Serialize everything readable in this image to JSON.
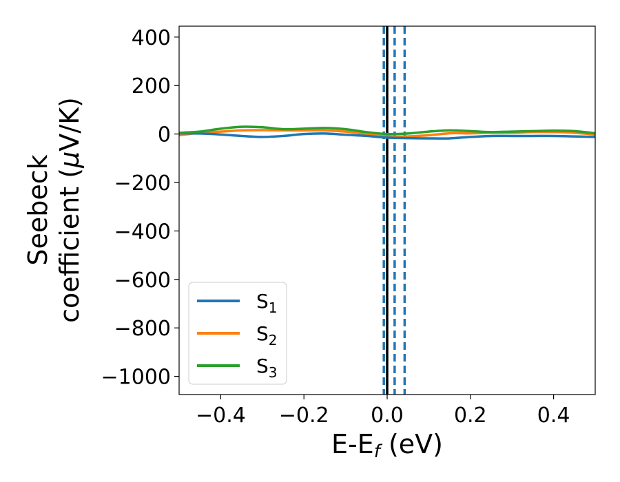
{
  "chart_data": {
    "type": "line",
    "xlabel": "E-E",
    "xlabel_sub": "f",
    "xlabel_unit": " (eV)",
    "ylabel_line1": "Seebeck",
    "ylabel_line2": "coefficient  (",
    "ylabel_mu": "μ",
    "ylabel_line2_end": "V/K)",
    "xlim": [
      -0.5,
      0.5
    ],
    "ylim": [
      -1075,
      445
    ],
    "x_ticks": [
      -0.4,
      -0.2,
      0.0,
      0.2,
      0.4
    ],
    "x_tick_labels": [
      "−0.4",
      "−0.2",
      "0.0",
      "0.2",
      "0.4"
    ],
    "y_ticks": [
      400,
      200,
      0,
      -200,
      -400,
      -600,
      -800,
      -1000
    ],
    "y_tick_labels": [
      "400",
      "200",
      "0",
      "−200",
      "−400",
      "−600",
      "−800",
      "−1000"
    ],
    "legend_position": "lower-left",
    "series": [
      {
        "name": "S",
        "name_sub": "1",
        "color": "#1f77b4",
        "x": [
          -0.5,
          -0.45,
          -0.4,
          -0.35,
          -0.3,
          -0.25,
          -0.2,
          -0.15,
          -0.1,
          -0.05,
          0.0,
          0.05,
          0.1,
          0.15,
          0.2,
          0.25,
          0.3,
          0.35,
          0.4,
          0.45,
          0.5
        ],
        "y": [
          3,
          2,
          -2,
          -8,
          -12,
          -8,
          0,
          2,
          -3,
          -8,
          -15,
          -17,
          -18,
          -18,
          -12,
          -8,
          -8,
          -8,
          -8,
          -10,
          -12
        ]
      },
      {
        "name": "S",
        "name_sub": "2",
        "color": "#ff7f0e",
        "x": [
          -0.5,
          -0.45,
          -0.4,
          -0.35,
          -0.3,
          -0.25,
          -0.2,
          -0.15,
          -0.1,
          -0.05,
          0.0,
          0.05,
          0.1,
          0.15,
          0.2,
          0.25,
          0.3,
          0.35,
          0.4,
          0.45,
          0.5
        ],
        "y": [
          -5,
          5,
          10,
          15,
          16,
          15,
          15,
          15,
          10,
          0,
          -10,
          -10,
          -5,
          3,
          3,
          5,
          5,
          8,
          8,
          5,
          -2
        ]
      },
      {
        "name": "S",
        "name_sub": "3",
        "color": "#2ca02c",
        "x": [
          -0.5,
          -0.45,
          -0.4,
          -0.35,
          -0.3,
          -0.25,
          -0.2,
          -0.15,
          -0.1,
          -0.05,
          0.0,
          0.05,
          0.1,
          0.15,
          0.2,
          0.25,
          0.3,
          0.35,
          0.4,
          0.45,
          0.5
        ],
        "y": [
          5,
          10,
          22,
          30,
          28,
          20,
          22,
          25,
          20,
          8,
          0,
          2,
          10,
          15,
          12,
          8,
          10,
          12,
          14,
          12,
          3
        ]
      }
    ],
    "vlines": [
      {
        "x": -0.008,
        "style": "dashed",
        "color": "#1f77b4"
      },
      {
        "x": 0.0,
        "style": "solid",
        "color": "#000000"
      },
      {
        "x": 0.018,
        "style": "dashed",
        "color": "#1f77b4"
      },
      {
        "x": 0.042,
        "style": "dashed",
        "color": "#1f77b4"
      }
    ]
  }
}
